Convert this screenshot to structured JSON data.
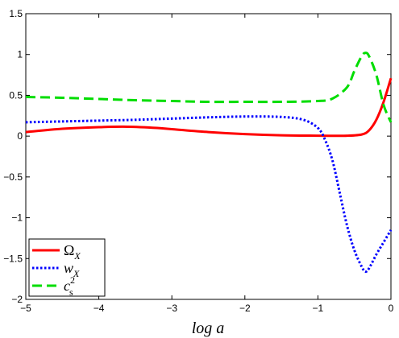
{
  "chart_data": {
    "type": "line",
    "title": "",
    "xlabel": "log a",
    "ylabel": "",
    "xlim": [
      -5,
      0
    ],
    "ylim": [
      -2,
      1.5
    ],
    "xticks": [
      -5,
      -4,
      -3,
      -2,
      -1,
      0
    ],
    "yticks": [
      -2,
      -1.5,
      -1,
      -0.5,
      0,
      0.5,
      1,
      1.5
    ],
    "xtick_labels": [
      "−5",
      "−4",
      "−3",
      "−2",
      "−1",
      "0"
    ],
    "ytick_labels": [
      "−2",
      "−1.5",
      "−1",
      "−0.5",
      "0",
      "0.5",
      "1",
      "1.5"
    ],
    "grid": false,
    "legend_position": "bottom-left",
    "series": [
      {
        "name": "Ω_X",
        "legend_main": "Ω",
        "legend_sub": "X",
        "legend_sup": "",
        "color": "#ff0000",
        "style": "solid",
        "x": [
          -5,
          -4.5,
          -4,
          -3.6,
          -3.2,
          -3.0,
          -2.5,
          -2.0,
          -1.5,
          -1.0,
          -0.8,
          -0.6,
          -0.4,
          -0.3,
          -0.2,
          -0.1,
          0
        ],
        "y": [
          0.05,
          0.09,
          0.11,
          0.115,
          0.1,
          0.085,
          0.05,
          0.025,
          0.01,
          0.005,
          0.004,
          0.005,
          0.02,
          0.07,
          0.2,
          0.42,
          0.71
        ]
      },
      {
        "name": "w_X",
        "legend_main": "w",
        "legend_sub": "X",
        "legend_sup": "",
        "color": "#0000ff",
        "style": "dotted",
        "x": [
          -5,
          -4.5,
          -4,
          -3.5,
          -3.0,
          -2.5,
          -2.0,
          -1.5,
          -1.2,
          -1.0,
          -0.9,
          -0.8,
          -0.7,
          -0.6,
          -0.5,
          -0.4,
          -0.35,
          -0.3,
          -0.2,
          -0.1,
          0
        ],
        "y": [
          0.17,
          0.18,
          0.19,
          0.2,
          0.215,
          0.23,
          0.24,
          0.235,
          0.2,
          0.1,
          -0.05,
          -0.3,
          -0.7,
          -1.1,
          -1.4,
          -1.6,
          -1.66,
          -1.62,
          -1.45,
          -1.3,
          -1.15
        ]
      },
      {
        "name": "c_s^2",
        "legend_main": "c",
        "legend_sub": "s",
        "legend_sup": "2",
        "color": "#00dd00",
        "style": "dashed",
        "x": [
          -5,
          -4.5,
          -4,
          -3.5,
          -3.0,
          -2.5,
          -2.0,
          -1.5,
          -1.0,
          -0.8,
          -0.6,
          -0.5,
          -0.4,
          -0.35,
          -0.3,
          -0.2,
          -0.1,
          0
        ],
        "y": [
          0.48,
          0.47,
          0.455,
          0.44,
          0.43,
          0.42,
          0.42,
          0.42,
          0.43,
          0.46,
          0.6,
          0.8,
          0.98,
          1.02,
          0.98,
          0.75,
          0.38,
          0.17
        ]
      }
    ]
  }
}
